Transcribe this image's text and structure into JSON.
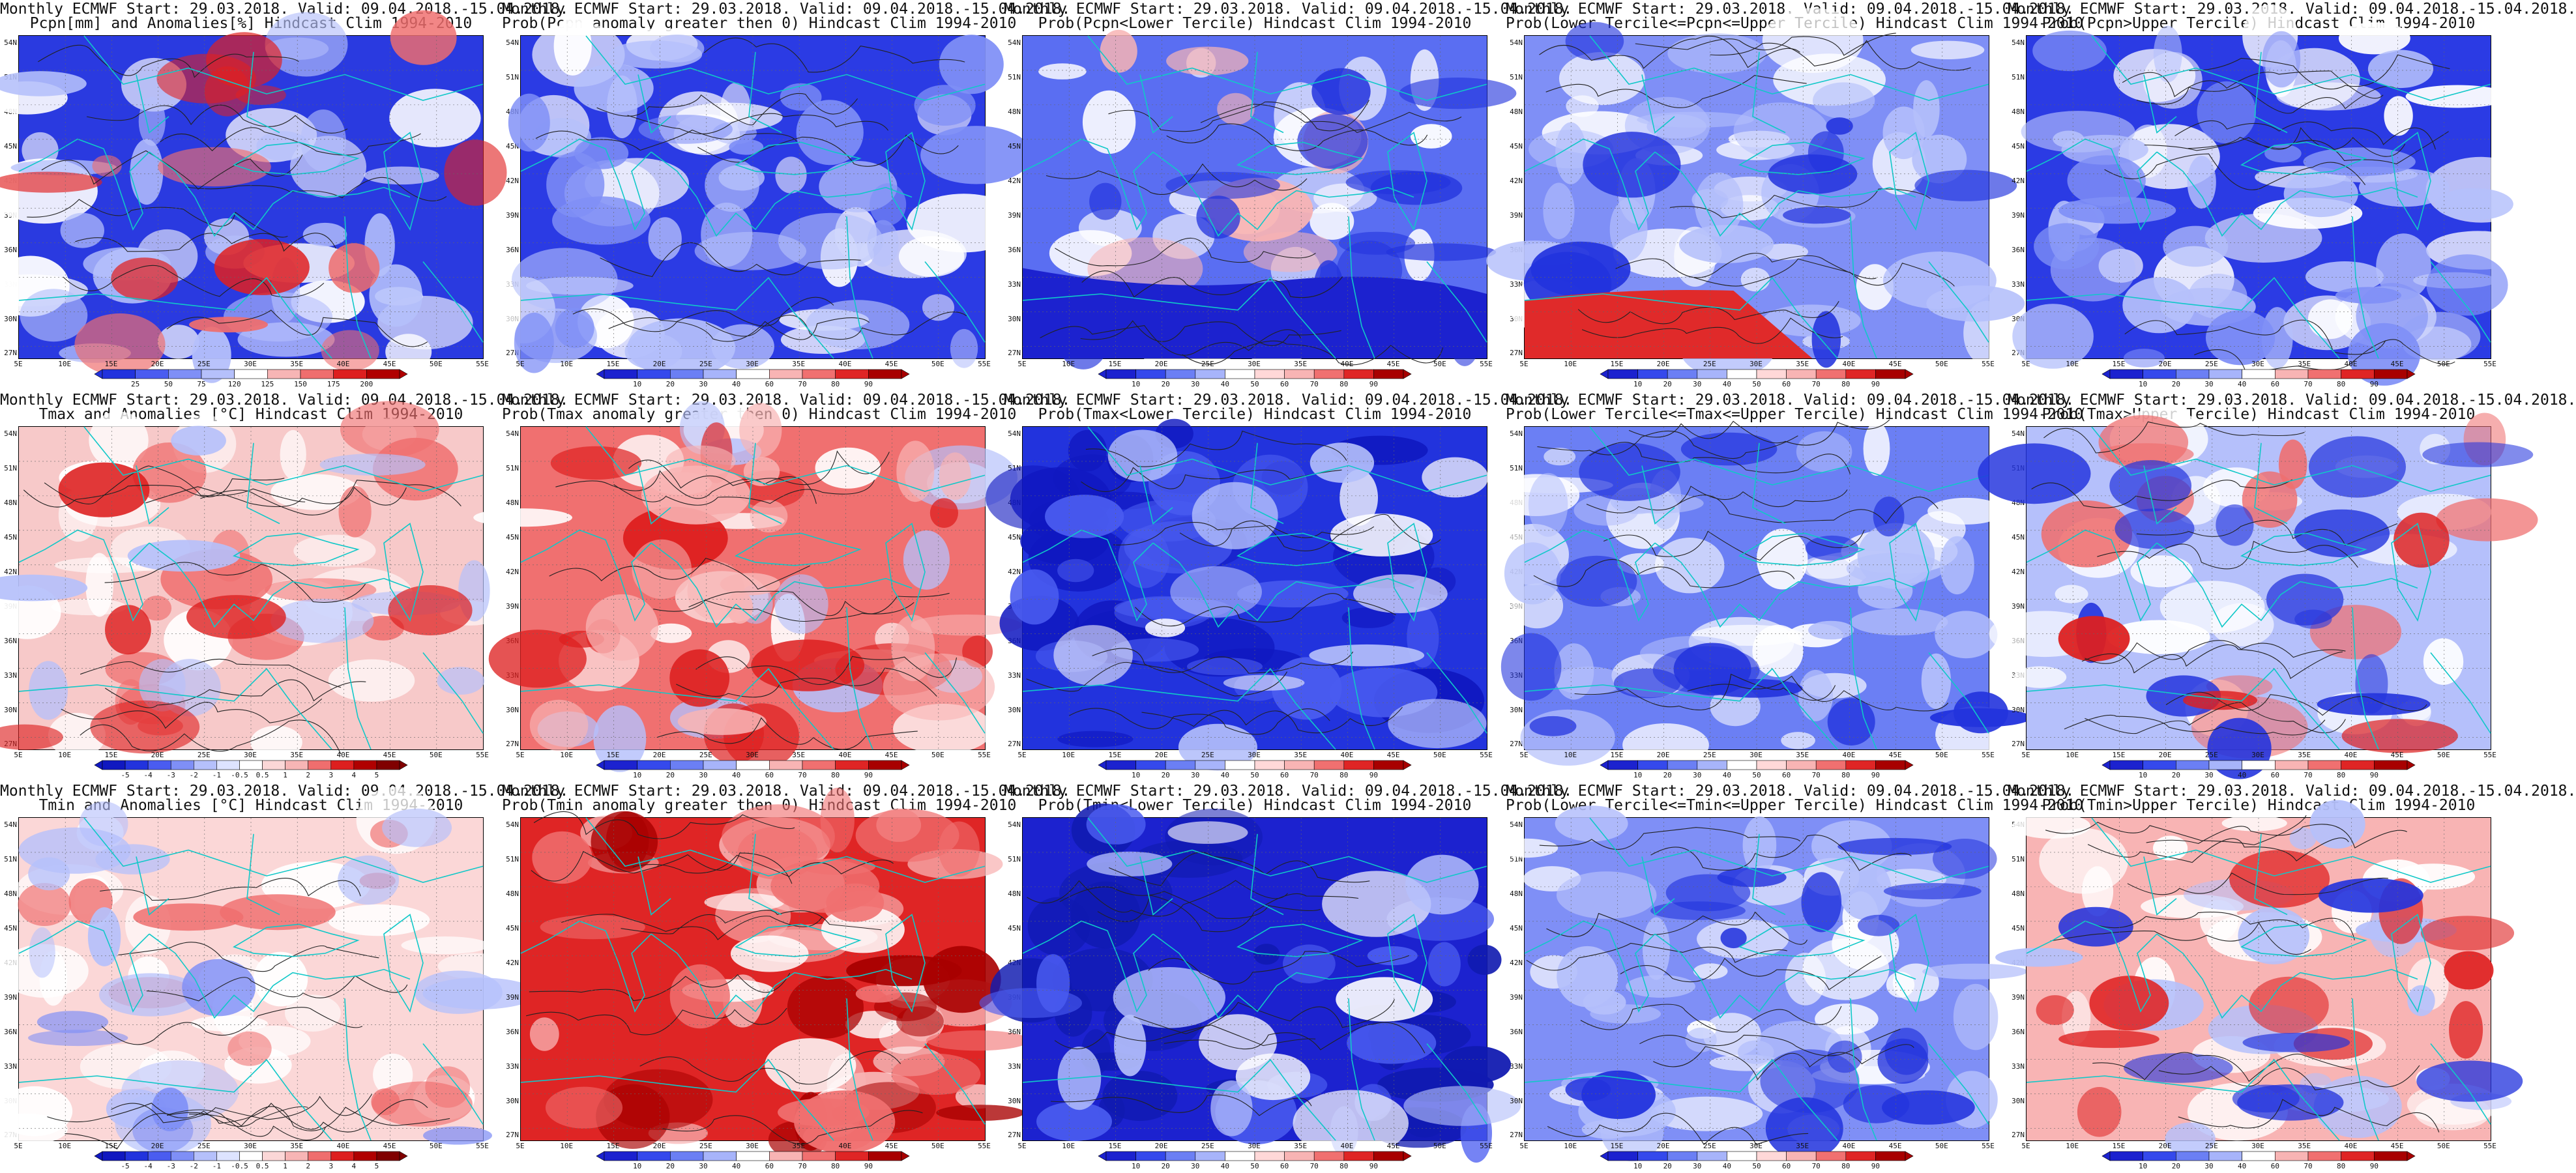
{
  "panels": [
    {
      "row": 0,
      "col": 0,
      "title1": "Monthly ECMWF Start: 29.03.2018. Valid: 09.04.2018.-15.04.2018.",
      "title2": "Pcpn[mm] and Anomalies[%] Hindcast Clim 1994-2010",
      "scheme": "precip_anom",
      "cbar_labels": [
        "25",
        "50",
        "75",
        "120",
        "125",
        "150",
        "175",
        "200"
      ],
      "cbar_colors": [
        "#2233dd",
        "#4a5cf0",
        "#7f8ff6",
        "#b5c0fb",
        "#ffffff",
        "#f7b5b5",
        "#ef6e6e",
        "#dd1f1f",
        "#b00000"
      ]
    },
    {
      "row": 0,
      "col": 1,
      "title1": "Monthly ECMWF Start: 29.03.2018. Valid: 09.04.2018.-15.04.2018.",
      "title2": "Prob(Pcpn anomaly greater then 0) Hindcast Clim 1994-2010",
      "scheme": "prob_blue",
      "cbar_labels": [
        "10",
        "20",
        "30",
        "40",
        "60",
        "70",
        "80",
        "90"
      ],
      "cbar_colors": [
        "#1c22cf",
        "#3549ec",
        "#6b7ff4",
        "#a7b4fa",
        "#ffffff",
        "#f8b4b4",
        "#f07070",
        "#df2525",
        "#a80000"
      ]
    },
    {
      "row": 0,
      "col": 2,
      "title1": "Monthly ECMWF Start: 29.03.2018. Valid: 09.04.2018.-15.04.2018.",
      "title2": "Prob(Pcpn<Lower Tercile) Hindcast Clim 1994-2010",
      "scheme": "prob_blue2",
      "cbar_labels": [
        "10",
        "20",
        "30",
        "40",
        "50",
        "60",
        "70",
        "80",
        "90"
      ],
      "cbar_colors": [
        "#1c22cf",
        "#3549ec",
        "#6b7ff4",
        "#a7b4fa",
        "#ffffff",
        "#ffd8d8",
        "#f8b4b4",
        "#f07070",
        "#df2525",
        "#a80000"
      ]
    },
    {
      "row": 0,
      "col": 3,
      "title1": "Monthly ECMWF Start: 29.03.2018. Valid: 09.04.2018.-15.04.2018.",
      "title2": "Prob(Lower Tercile<=Pcpn<=Upper Tercile) Hindcast Clim 1994-2010",
      "scheme": "prob_mid",
      "cbar_labels": [
        "10",
        "20",
        "30",
        "40",
        "50",
        "60",
        "70",
        "80",
        "90"
      ],
      "cbar_colors": [
        "#1c22cf",
        "#3549ec",
        "#6b7ff4",
        "#a7b4fa",
        "#ffffff",
        "#ffd8d8",
        "#f8b4b4",
        "#f07070",
        "#df2525",
        "#a80000"
      ]
    },
    {
      "row": 0,
      "col": 4,
      "title1": "Monthly ECMWF Start: 29.03.2018. Valid: 09.04.2018.-15.04.2018.",
      "title2": "Prob(Pcpn>Upper Tercile) Hindcast Clim 1994-2010",
      "scheme": "prob_blue",
      "cbar_labels": [
        "10",
        "20",
        "30",
        "40",
        "60",
        "70",
        "80",
        "90"
      ],
      "cbar_colors": [
        "#1c22cf",
        "#3549ec",
        "#6b7ff4",
        "#a7b4fa",
        "#ffffff",
        "#f8b4b4",
        "#f07070",
        "#df2525",
        "#a80000"
      ]
    },
    {
      "row": 1,
      "col": 0,
      "title1": "Monthly ECMWF Start: 29.03.2018. Valid: 09.04.2018.-15.04.2018.",
      "title2": "Tmax and Anomalies [°C] Hindcast Clim 1994-2010",
      "scheme": "temp_anom",
      "cbar_labels": [
        "-5",
        "-4",
        "-3",
        "-2",
        "-1",
        "-0.5",
        "0.5",
        "1",
        "2",
        "3",
        "4",
        "5"
      ],
      "cbar_colors": [
        "#1018c0",
        "#2233dd",
        "#4a5cf0",
        "#7f8ff6",
        "#b5c0fb",
        "#dde3ff",
        "#ffffff",
        "#fbd7d7",
        "#f7b5b5",
        "#ef6e6e",
        "#dd1f1f",
        "#b00000",
        "#800000"
      ]
    },
    {
      "row": 1,
      "col": 1,
      "title1": "Monthly ECMWF Start: 29.03.2018. Valid: 09.04.2018.-15.04.2018.",
      "title2": "Prob(Tmax anomaly greater then 0) Hindcast Clim 1994-2010",
      "scheme": "prob_red",
      "cbar_labels": [
        "10",
        "20",
        "30",
        "40",
        "60",
        "70",
        "80",
        "90"
      ],
      "cbar_colors": [
        "#1c22cf",
        "#3549ec",
        "#6b7ff4",
        "#a7b4fa",
        "#ffffff",
        "#f8b4b4",
        "#f07070",
        "#df2525",
        "#a80000"
      ]
    },
    {
      "row": 1,
      "col": 2,
      "title1": "Monthly ECMWF Start: 29.03.2018. Valid: 09.04.2018.-15.04.2018.",
      "title2": "Prob(Tmax<Lower Tercile) Hindcast Clim 1994-2010",
      "scheme": "prob_deepblue",
      "cbar_labels": [
        "10",
        "20",
        "30",
        "40",
        "50",
        "60",
        "70",
        "80",
        "90"
      ],
      "cbar_colors": [
        "#1c22cf",
        "#3549ec",
        "#6b7ff4",
        "#a7b4fa",
        "#ffffff",
        "#ffd8d8",
        "#f8b4b4",
        "#f07070",
        "#df2525",
        "#a80000"
      ]
    },
    {
      "row": 1,
      "col": 3,
      "title1": "Monthly ECMWF Start: 29.03.2018. Valid: 09.04.2018.-15.04.2018.",
      "title2": "Prob(Lower Tercile<=Tmax<=Upper Tercile) Hindcast Clim 1994-2010",
      "scheme": "prob_mid2",
      "cbar_labels": [
        "10",
        "20",
        "30",
        "40",
        "50",
        "60",
        "70",
        "80",
        "90"
      ],
      "cbar_colors": [
        "#1c22cf",
        "#3549ec",
        "#6b7ff4",
        "#a7b4fa",
        "#ffffff",
        "#ffd8d8",
        "#f8b4b4",
        "#f07070",
        "#df2525",
        "#a80000"
      ]
    },
    {
      "row": 1,
      "col": 4,
      "title1": "Monthly ECMWF Start: 29.03.2018. Valid: 09.04.2018.-15.04.2018.",
      "title2": "Prob(Tmax>Upper Tercile) Hindcast Clim 1994-2010",
      "scheme": "prob_mixed",
      "cbar_labels": [
        "10",
        "20",
        "30",
        "40",
        "60",
        "70",
        "80",
        "90"
      ],
      "cbar_colors": [
        "#1c22cf",
        "#3549ec",
        "#6b7ff4",
        "#a7b4fa",
        "#ffffff",
        "#f8b4b4",
        "#f07070",
        "#df2525",
        "#a80000"
      ]
    },
    {
      "row": 2,
      "col": 0,
      "title1": "Monthly ECMWF Start: 29.03.2018. Valid: 09.04.2018.-15.04.2018.",
      "title2": "Tmin and Anomalies [°C] Hindcast Clim 1994-2010",
      "scheme": "temp_anom2",
      "cbar_labels": [
        "-5",
        "-4",
        "-3",
        "-2",
        "-1",
        "-0.5",
        "0.5",
        "1",
        "2",
        "3",
        "4",
        "5"
      ],
      "cbar_colors": [
        "#1018c0",
        "#2233dd",
        "#4a5cf0",
        "#7f8ff6",
        "#b5c0fb",
        "#dde3ff",
        "#ffffff",
        "#fbd7d7",
        "#f7b5b5",
        "#ef6e6e",
        "#dd1f1f",
        "#b00000",
        "#800000"
      ]
    },
    {
      "row": 2,
      "col": 1,
      "title1": "Monthly ECMWF Start: 29.03.2018. Valid: 09.04.2018.-15.04.2018.",
      "title2": "Prob(Tmin anomaly greater then 0) Hindcast Clim 1994-2010",
      "scheme": "prob_red2",
      "cbar_labels": [
        "10",
        "20",
        "30",
        "40",
        "60",
        "70",
        "80",
        "90"
      ],
      "cbar_colors": [
        "#1c22cf",
        "#3549ec",
        "#6b7ff4",
        "#a7b4fa",
        "#ffffff",
        "#f8b4b4",
        "#f07070",
        "#df2525",
        "#a80000"
      ]
    },
    {
      "row": 2,
      "col": 2,
      "title1": "Monthly ECMWF Start: 29.03.2018. Valid: 09.04.2018.-15.04.2018.",
      "title2": "Prob(Tmin<Lower Tercile) Hindcast Clim 1994-2010",
      "scheme": "prob_deepblue2",
      "cbar_labels": [
        "10",
        "20",
        "30",
        "40",
        "50",
        "60",
        "70",
        "80",
        "90"
      ],
      "cbar_colors": [
        "#1c22cf",
        "#3549ec",
        "#6b7ff4",
        "#a7b4fa",
        "#ffffff",
        "#ffd8d8",
        "#f8b4b4",
        "#f07070",
        "#df2525",
        "#a80000"
      ]
    },
    {
      "row": 2,
      "col": 3,
      "title1": "Monthly ECMWF Start: 29.03.2018. Valid: 09.04.2018.-15.04.2018.",
      "title2": "Prob(Lower Tercile<=Tmin<=Upper Tercile) Hindcast Clim 1994-2010",
      "scheme": "prob_mid3",
      "cbar_labels": [
        "10",
        "20",
        "30",
        "40",
        "50",
        "60",
        "70",
        "80",
        "90"
      ],
      "cbar_colors": [
        "#1c22cf",
        "#3549ec",
        "#6b7ff4",
        "#a7b4fa",
        "#ffffff",
        "#ffd8d8",
        "#f8b4b4",
        "#f07070",
        "#df2525",
        "#a80000"
      ]
    },
    {
      "row": 2,
      "col": 4,
      "title1": "Monthly ECMWF Start: 29.03.2018. Valid: 09.04.2018.-15.04.2018.",
      "title2": "Prob(Tmin>Upper Tercile) Hindcast Clim 1994-2010",
      "scheme": "prob_mixed2",
      "cbar_labels": [
        "10",
        "20",
        "30",
        "40",
        "60",
        "70",
        "80",
        "90"
      ],
      "cbar_colors": [
        "#1c22cf",
        "#3549ec",
        "#6b7ff4",
        "#a7b4fa",
        "#ffffff",
        "#f8b4b4",
        "#f07070",
        "#df2525",
        "#a80000"
      ]
    }
  ],
  "lat_labels": [
    "54N",
    "51N",
    "48N",
    "45N",
    "42N",
    "39N",
    "36N",
    "33N",
    "30N",
    "27N"
  ],
  "lon_labels": [
    "5E",
    "10E",
    "15E",
    "20E",
    "25E",
    "30E",
    "35E",
    "40E",
    "45E",
    "50E",
    "55E"
  ],
  "colors": {
    "coast": "#10c8c8",
    "contour": "#222222",
    "grid": "#666666"
  }
}
